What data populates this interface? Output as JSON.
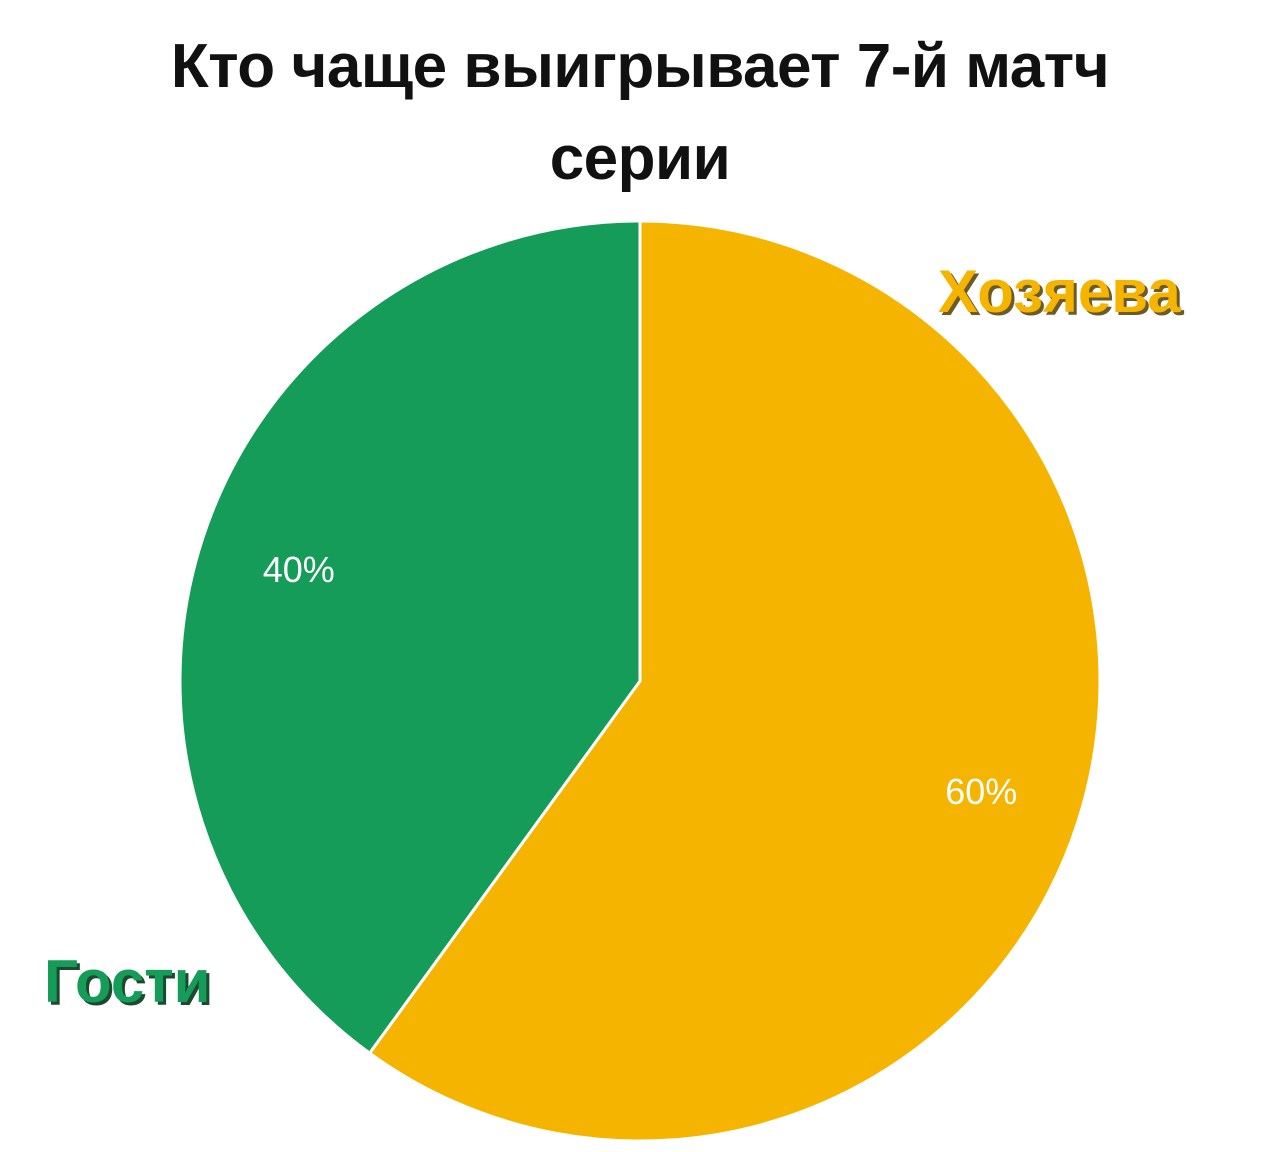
{
  "chart_data": {
    "type": "pie",
    "title": [
      "Кто чаще выигрывает 7-й матч",
      "серии"
    ],
    "slices": [
      {
        "name": "Хозяева",
        "value": 60,
        "label": "60%",
        "color": "#F4B400"
      },
      {
        "name": "Гости",
        "value": 40,
        "label": "40%",
        "color": "#159C58"
      }
    ],
    "start_angle": "top",
    "direction": "clockwise"
  }
}
